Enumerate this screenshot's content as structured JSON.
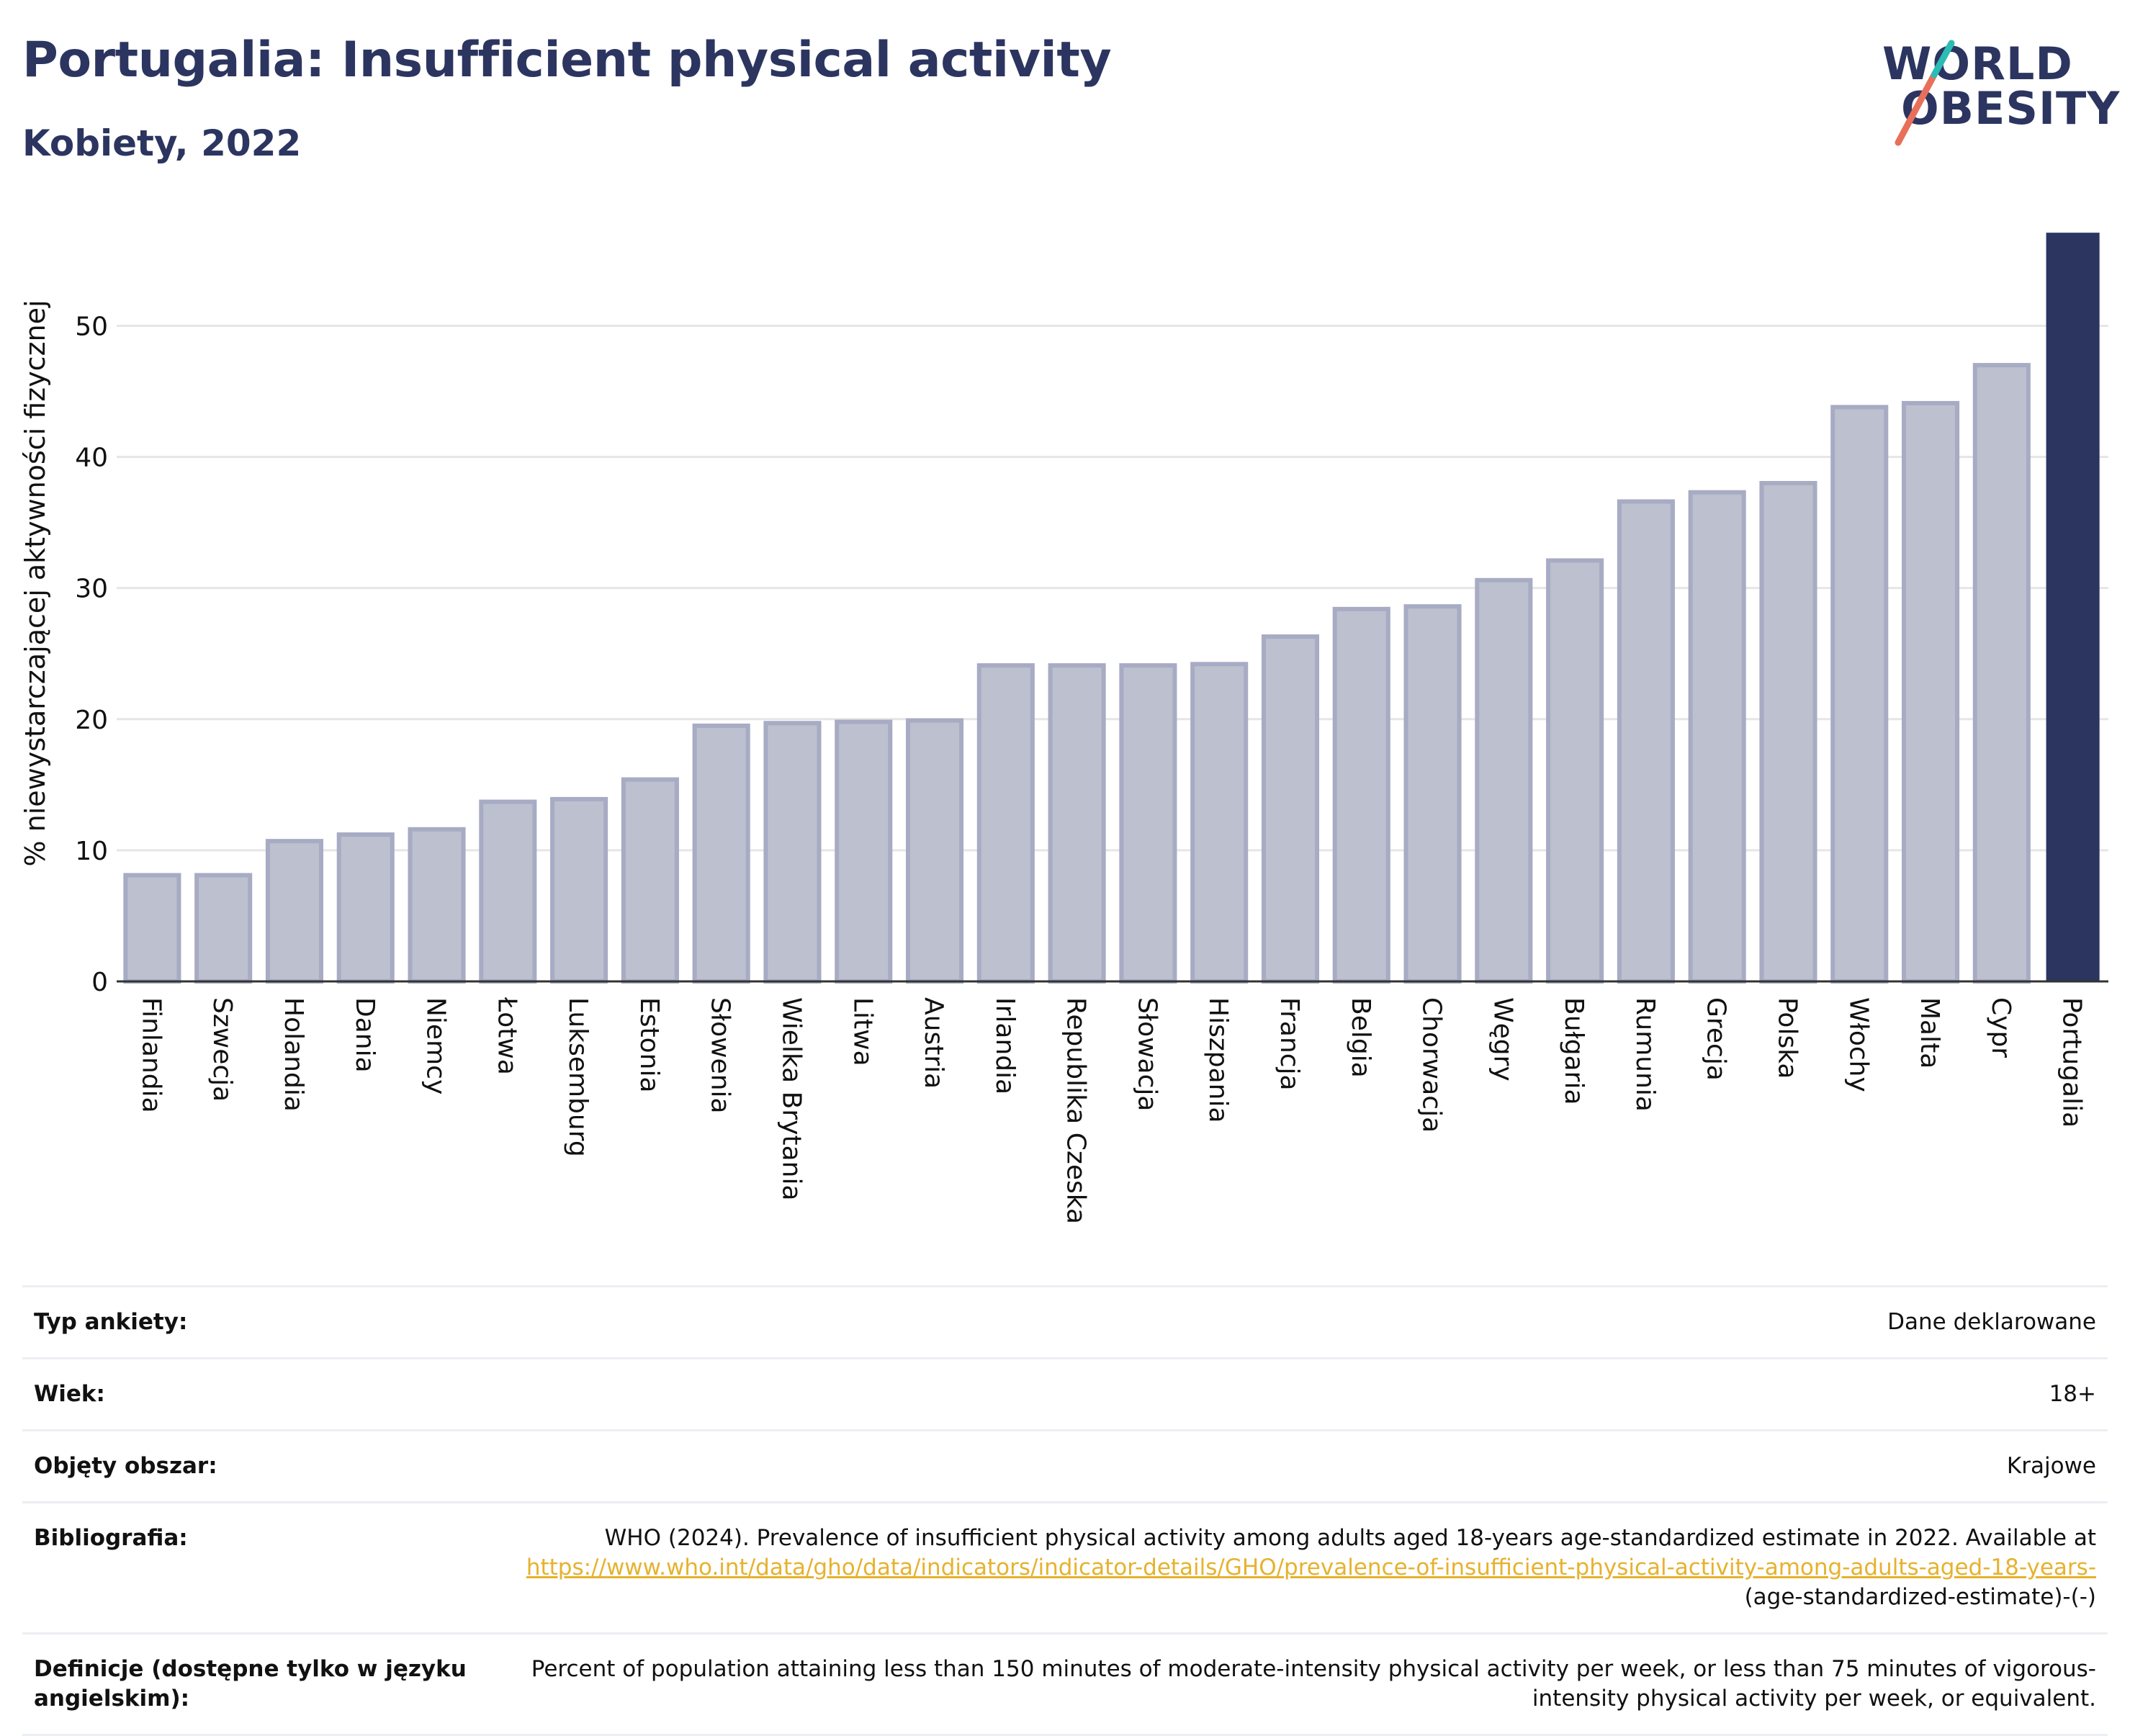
{
  "header": {
    "title": "Portugalia: Insufficient physical activity",
    "subtitle": "Kobiety, 2022"
  },
  "logo": {
    "line1": "WORLD",
    "line2": "OBESITY",
    "icon": "world-obesity-slash-logo"
  },
  "colors": {
    "highlight": "#2c3560",
    "bar_fill": "#bcc0cf",
    "bar_stroke": "#a7abc3",
    "grid": "#e6e6e6",
    "link": "#e6b22e"
  },
  "chart_data": {
    "type": "bar",
    "title": "Portugalia: Insufficient physical activity",
    "subtitle": "Kobiety, 2022",
    "xlabel": "",
    "ylabel": "% niewystarczającej aktywności fizycznej",
    "ylim": [
      0,
      57
    ],
    "yticks": [
      0,
      10,
      20,
      30,
      40,
      50
    ],
    "grid": true,
    "highlight": "Portugalia",
    "categories": [
      "Finlandia",
      "Szwecja",
      "Holandia",
      "Dania",
      "Niemcy",
      "Łotwa",
      "Luksemburg",
      "Estonia",
      "Słowenia",
      "Wielka Brytania",
      "Litwa",
      "Austria",
      "Irlandia",
      "Republika Czeska",
      "Słowacja",
      "Hiszpania",
      "Francja",
      "Belgia",
      "Chorwacja",
      "Węgry",
      "Bułgaria",
      "Rumunia",
      "Grecja",
      "Polska",
      "Włochy",
      "Malta",
      "Cypr",
      "Portugalia"
    ],
    "values": [
      8.1,
      8.1,
      10.7,
      11.2,
      11.6,
      13.7,
      13.9,
      15.4,
      19.5,
      19.7,
      19.8,
      19.9,
      24.1,
      24.1,
      24.1,
      24.2,
      26.3,
      28.4,
      28.6,
      30.6,
      32.1,
      36.6,
      37.3,
      38.0,
      43.8,
      44.1,
      47.0,
      57.1
    ]
  },
  "info": [
    {
      "label": "Typ ankiety:",
      "value": "Dane deklarowane"
    },
    {
      "label": "Wiek:",
      "value": "18+"
    },
    {
      "label": "Objęty obszar:",
      "value": "Krajowe"
    },
    {
      "label": "Bibliografia:",
      "value": "WHO (2024). Prevalence of insufficient physical activity among adults aged 18-years age-standardized estimate in 2022. Available at",
      "link": "https://www.who.int/data/gho/data/indicators/indicator-details/GHO/prevalence-of-insufficient-physical-activity-among-adults-aged-18-years-",
      "value_suffix": "(age-standardized-estimate)-(-)"
    },
    {
      "label": "Definicje (dostępne tylko w języku angielskim):",
      "value": "Percent of population attaining less than 150 minutes of moderate-intensity physical activity per week, or less than 75 minutes of vigorous-intensity physical activity per week, or equivalent."
    }
  ]
}
